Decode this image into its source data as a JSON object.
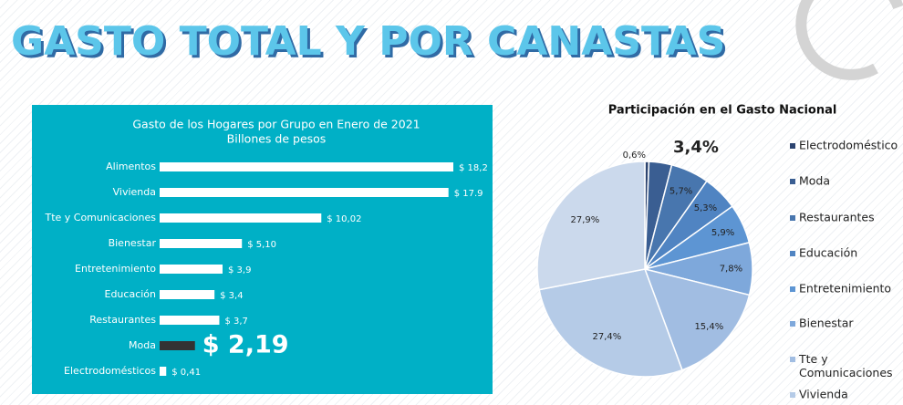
{
  "title": "GASTO TOTAL Y POR CANASTAS",
  "chart_data": [
    {
      "type": "hbar",
      "title": "Gasto de los Hogares por Grupo en Enero de 2021",
      "subtitle": "Billones de pesos",
      "categories": [
        "Alimentos",
        "Vivienda",
        "Tte y Comunicaciones",
        "Bienestar",
        "Entretenimiento",
        "Educación",
        "Restaurantes",
        "Moda",
        "Electrodomésticos"
      ],
      "values": [
        18.2,
        17.9,
        10.02,
        5.1,
        3.9,
        3.4,
        3.7,
        2.19,
        0.41
      ],
      "value_labels": [
        "$ 18,2",
        "$ 17.9",
        "$ 10,02",
        "$ 5,10",
        "$ 3,9",
        "$ 3,4",
        "$ 3,7",
        "$ 2,19",
        "$ 0,41"
      ],
      "colors": [
        "#ffffff",
        "#ffffff",
        "#ffffff",
        "#ffffff",
        "#ffffff",
        "#ffffff",
        "#ffffff",
        "#333333",
        "#ffffff"
      ],
      "background": "#00b0c6"
    },
    {
      "type": "pie",
      "title": "Participación en el Gasto Nacional",
      "categories": [
        "Electrodoméstico",
        "Moda",
        "Restaurantes",
        "Educación",
        "Entretenimiento",
        "Bienestar",
        "Tte y Comunicaciones",
        "Vivienda",
        null
      ],
      "values": [
        0.6,
        3.4,
        5.7,
        5.3,
        5.9,
        7.8,
        15.4,
        27.4,
        27.9
      ],
      "value_labels": [
        "0,6%",
        "3,4%",
        "5,7%",
        "5,3%",
        "5,9%",
        "7,8%",
        "15,4%",
        "27,4%",
        "27,9%"
      ],
      "colors": [
        "#2c4470",
        "#3a5e92",
        "#4876ae",
        "#5084c2",
        "#5d95d3",
        "#7ea8db",
        "#a1bde2",
        "#b5cbe7",
        "#cbd9ec"
      ]
    }
  ]
}
